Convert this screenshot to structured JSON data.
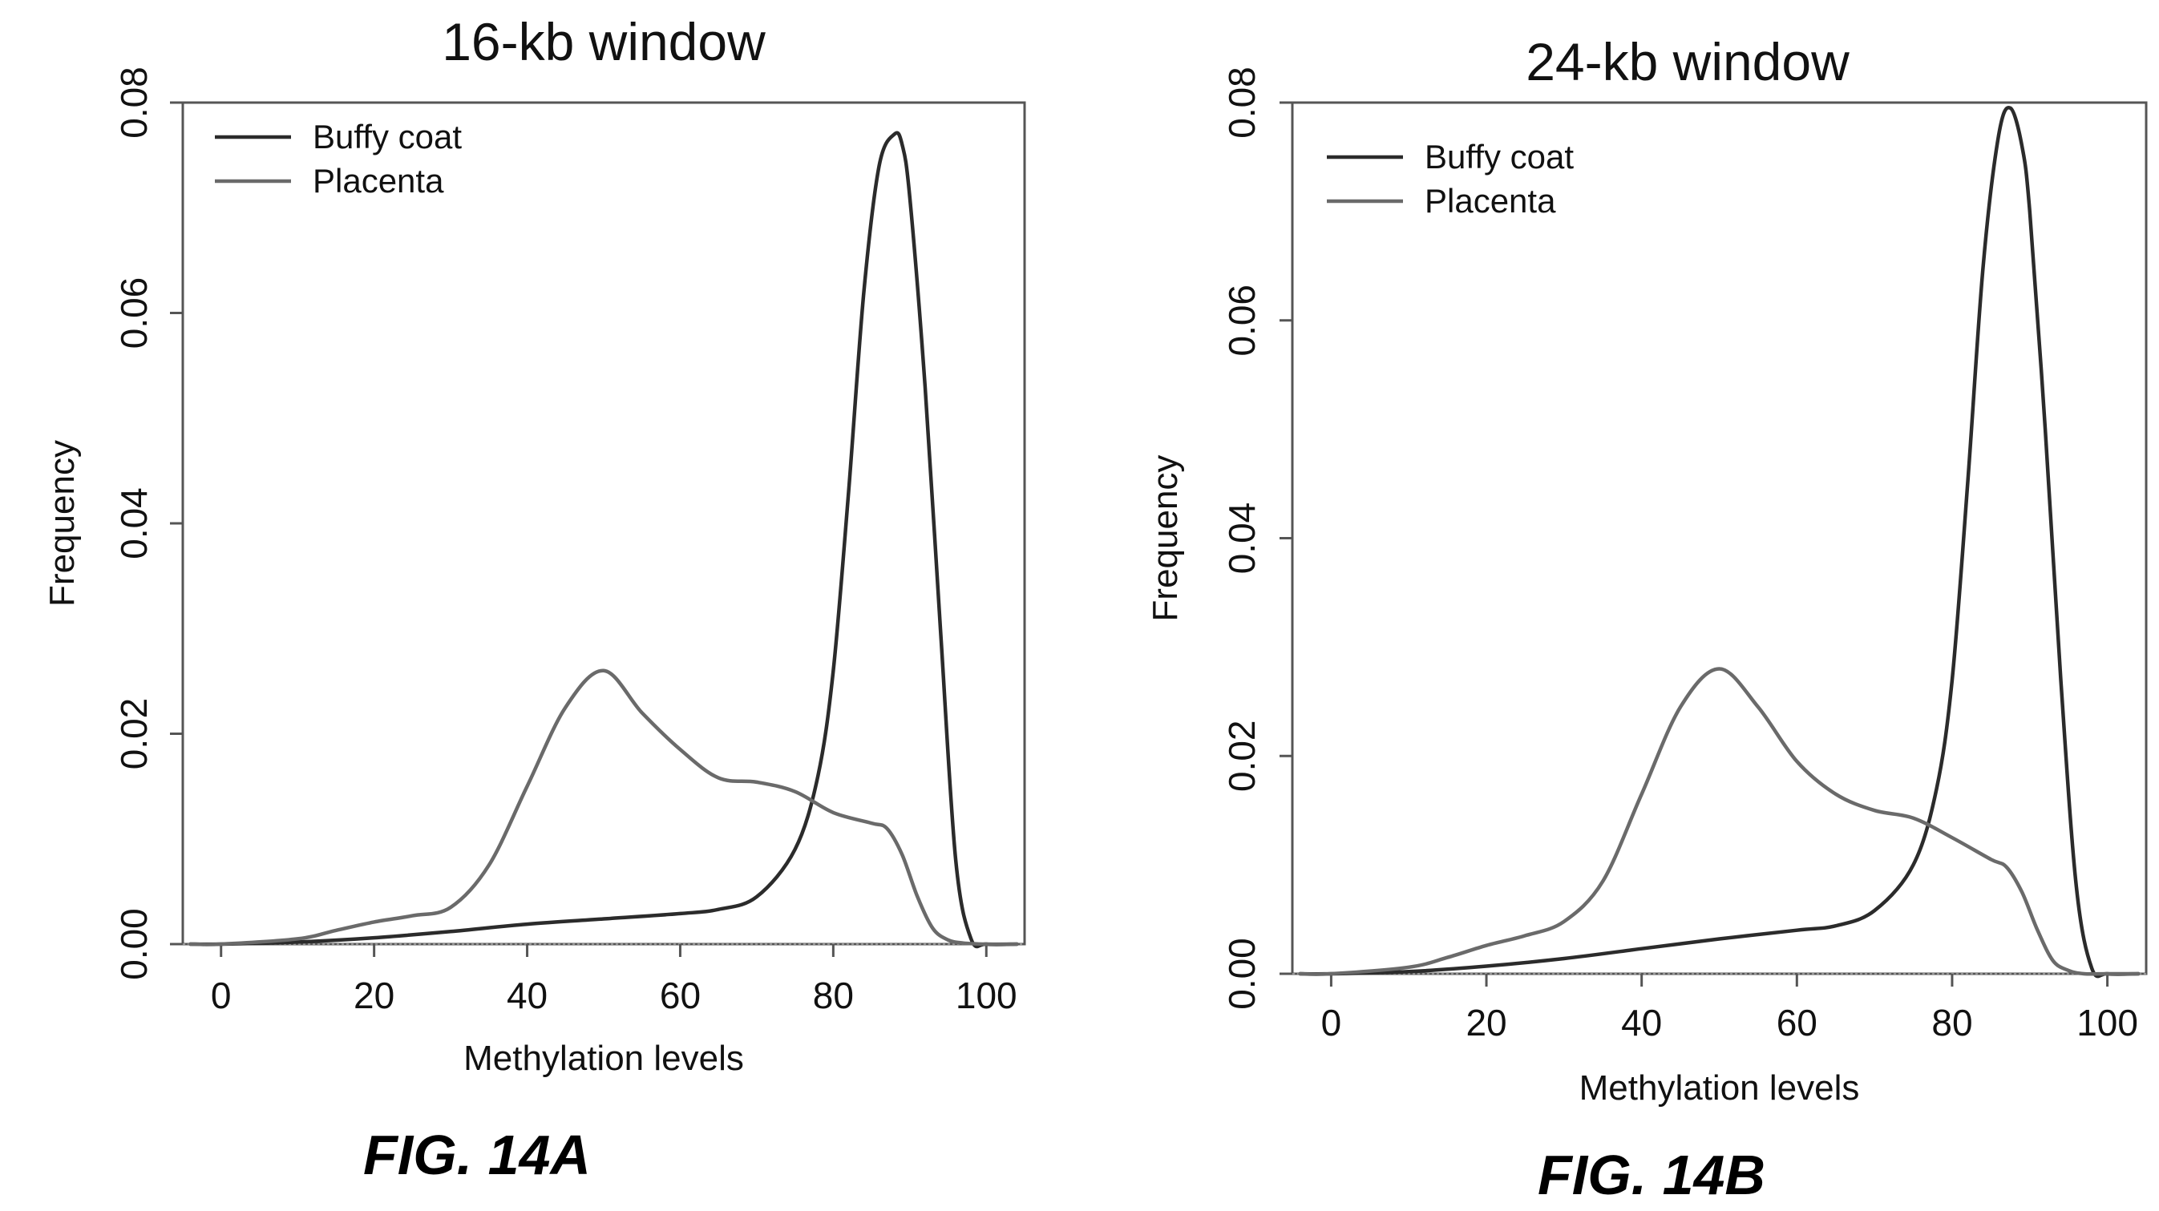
{
  "colors": {
    "buffy_coat": "#2b2b2b",
    "placenta": "#6a6a6a"
  },
  "chart_data": [
    {
      "id": "fig14a",
      "type": "line",
      "title": "16-kb window",
      "xlabel": "Methylation levels",
      "ylabel": "Frequency",
      "figure_label": "FIG. 14A",
      "xlim": [
        -5,
        105
      ],
      "ylim": [
        0,
        0.08
      ],
      "x_ticks": [
        0,
        20,
        40,
        60,
        80,
        100
      ],
      "y_ticks": [
        0,
        0.02,
        0.04,
        0.06,
        0.08
      ],
      "y_tick_labels": [
        "0.00",
        "0.02",
        "0.04",
        "0.06",
        "0.08"
      ],
      "grid": false,
      "legend_position": "top-left",
      "series": [
        {
          "name": "Buffy coat",
          "color": "#2b2b2b",
          "x": [
            -4,
            0,
            10,
            20,
            30,
            40,
            50,
            60,
            65,
            70,
            75,
            78,
            80,
            82,
            84,
            86,
            88,
            89,
            90,
            92,
            94,
            96,
            98,
            100,
            104
          ],
          "y": [
            0,
            0,
            0.0002,
            0.0006,
            0.0012,
            0.0019,
            0.0024,
            0.0029,
            0.0033,
            0.0045,
            0.009,
            0.016,
            0.026,
            0.043,
            0.062,
            0.074,
            0.077,
            0.076,
            0.071,
            0.053,
            0.03,
            0.008,
            0.0005,
            0,
            0
          ]
        },
        {
          "name": "Placenta",
          "color": "#6a6a6a",
          "x": [
            -4,
            0,
            10,
            15,
            20,
            25,
            30,
            35,
            40,
            45,
            50,
            55,
            60,
            65,
            70,
            75,
            80,
            85,
            87,
            89,
            91,
            93,
            95,
            97,
            100,
            104
          ],
          "y": [
            0,
            0,
            0.0005,
            0.0013,
            0.0021,
            0.0027,
            0.0035,
            0.0075,
            0.015,
            0.0225,
            0.026,
            0.022,
            0.0185,
            0.0158,
            0.0154,
            0.0145,
            0.0125,
            0.0115,
            0.011,
            0.0085,
            0.0045,
            0.0015,
            0.0004,
            0.0001,
            0,
            0
          ]
        }
      ]
    },
    {
      "id": "fig14b",
      "type": "line",
      "title": "24-kb window",
      "xlabel": "Methylation levels",
      "ylabel": "Frequency",
      "figure_label": "FIG. 14B",
      "xlim": [
        -5,
        105
      ],
      "ylim": [
        0,
        0.08
      ],
      "x_ticks": [
        0,
        20,
        40,
        60,
        80,
        100
      ],
      "y_ticks": [
        0,
        0.02,
        0.04,
        0.06,
        0.08
      ],
      "y_tick_labels": [
        "0.00",
        "0.02",
        "0.04",
        "0.06",
        "0.08"
      ],
      "grid": false,
      "legend_position": "top-left",
      "series": [
        {
          "name": "Buffy coat",
          "color": "#2b2b2b",
          "x": [
            -4,
            0,
            10,
            20,
            30,
            40,
            50,
            60,
            65,
            70,
            75,
            78,
            80,
            82,
            84,
            86,
            87.5,
            89,
            90,
            92,
            94,
            96,
            98,
            100,
            104
          ],
          "y": [
            0,
            0,
            0.0002,
            0.0007,
            0.0014,
            0.0023,
            0.0032,
            0.004,
            0.0044,
            0.0058,
            0.01,
            0.017,
            0.027,
            0.045,
            0.065,
            0.077,
            0.0795,
            0.076,
            0.07,
            0.05,
            0.027,
            0.008,
            0.0005,
            0,
            0
          ]
        },
        {
          "name": "Placenta",
          "color": "#6a6a6a",
          "x": [
            -4,
            0,
            10,
            15,
            20,
            25,
            30,
            35,
            40,
            45,
            50,
            55,
            60,
            65,
            70,
            75,
            80,
            85,
            87,
            89,
            91,
            93,
            95,
            97,
            100,
            104
          ],
          "y": [
            0,
            0,
            0.0006,
            0.0015,
            0.0026,
            0.0035,
            0.0048,
            0.0085,
            0.0165,
            0.0245,
            0.028,
            0.0245,
            0.0195,
            0.0165,
            0.015,
            0.0143,
            0.0125,
            0.0105,
            0.0098,
            0.0075,
            0.004,
            0.0012,
            0.0003,
            0,
            0,
            0
          ]
        }
      ]
    }
  ]
}
